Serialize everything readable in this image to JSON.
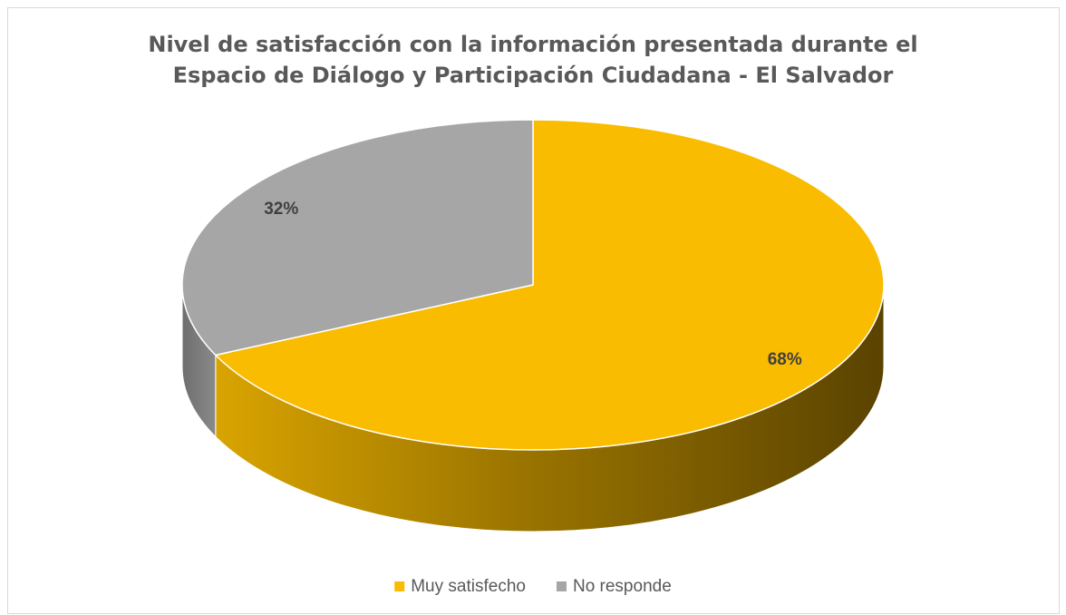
{
  "chart_data": {
    "type": "pie",
    "title": "Nivel de satisfacción con la información presentada durante el Espacio de Diálogo y Participación Ciudadana - El Salvador",
    "categories": [
      "Muy satisfecho",
      "No responde"
    ],
    "values": [
      68,
      32
    ],
    "value_labels": [
      "68%",
      "32%"
    ],
    "colors": [
      "#f9bc00",
      "#a6a6a6"
    ],
    "legend": "bottom"
  }
}
